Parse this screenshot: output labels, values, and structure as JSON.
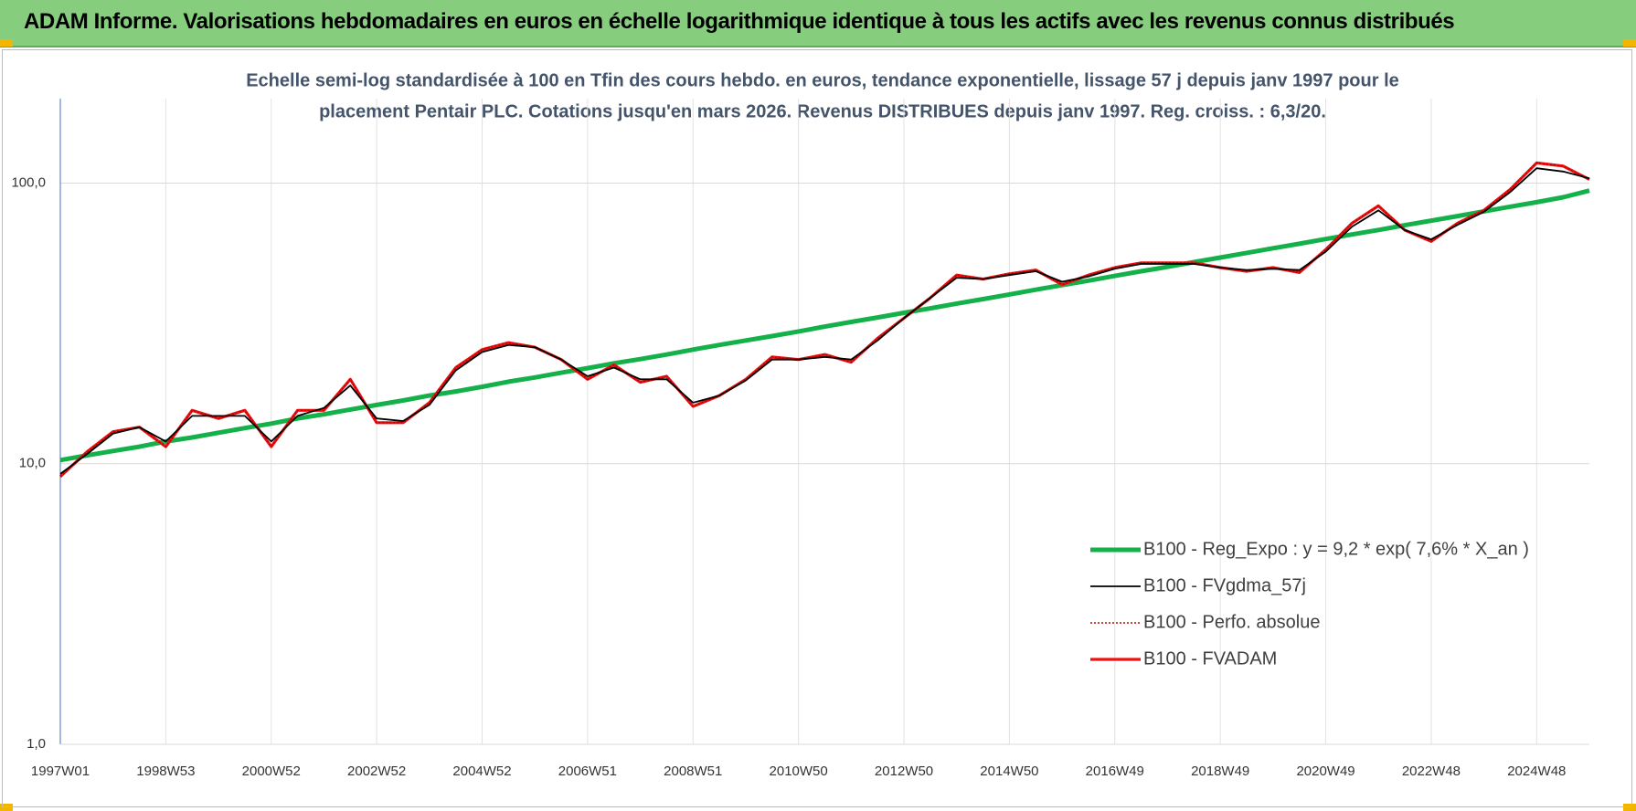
{
  "header": {
    "title": "ADAM Informe. Valorisations hebdomadaires en euros en échelle logarithmique identique à tous les actifs avec les revenus connus distribués"
  },
  "chart_data": {
    "type": "line",
    "subtitle_lines": [
      "Echelle semi-log standardisée à 100 en Tfin des cours hebdo. en euros, tendance exponentielle, lissage 57 j depuis janv 1997 pour le",
      "placement Pentair PLC. Cotations jusqu'en mars 2026. Revenus DISTRIBUES depuis janv 1997. Reg. croiss. : 6,3/20."
    ],
    "categories": [
      "1997W01",
      null,
      null,
      null,
      "1998W53",
      null,
      null,
      null,
      "2000W52",
      null,
      null,
      null,
      "2002W52",
      null,
      null,
      null,
      "2004W52",
      null,
      null,
      null,
      "2006W51",
      null,
      null,
      null,
      "2008W51",
      null,
      null,
      null,
      "2010W50",
      null,
      null,
      null,
      "2012W50",
      null,
      null,
      null,
      "2014W50",
      null,
      null,
      null,
      "2016W49",
      null,
      null,
      null,
      "2018W49",
      null,
      null,
      null,
      "2020W49",
      null,
      null,
      null,
      "2022W48",
      null,
      null,
      null,
      "2024W48",
      null,
      null
    ],
    "log_scale": true,
    "ylim": [
      1,
      200
    ],
    "yticks": [
      {
        "value": 1,
        "label": "1,0"
      },
      {
        "value": 10,
        "label": "10,0"
      },
      {
        "value": 100,
        "label": "100,0"
      }
    ],
    "grid": true,
    "legend_position": "right",
    "series": [
      {
        "name": "B100 - Reg_Expo : y = 9,2 * exp( 7,6% *  X_an )",
        "color": "#14b14b",
        "line_style": "solid",
        "values": [
          10.3,
          10.7,
          11.1,
          11.5,
          12.0,
          12.4,
          12.9,
          13.4,
          13.9,
          14.5,
          15.0,
          15.6,
          16.2,
          16.8,
          17.5,
          18.1,
          18.8,
          19.6,
          20.3,
          21.1,
          21.9,
          22.8,
          23.6,
          24.5,
          25.5,
          26.5,
          27.5,
          28.5,
          29.6,
          30.8,
          32.0,
          33.2,
          34.5,
          35.8,
          37.2,
          38.6,
          40.1,
          41.7,
          43.3,
          44.9,
          46.7,
          48.5,
          50.3,
          52.3,
          54.3,
          56.4,
          58.6,
          60.8,
          63.2,
          65.6,
          68.1,
          70.8,
          73.5,
          76.3,
          79.3,
          82.4,
          85.5,
          89.0,
          94.0
        ]
      },
      {
        "name": "B100 - FVgdma_57j",
        "color": "#000000",
        "line_style": "solid",
        "values": [
          9.2,
          10.8,
          12.8,
          13.5,
          12.0,
          14.8,
          14.8,
          14.8,
          12.0,
          14.8,
          15.8,
          19.0,
          14.5,
          14.2,
          16.2,
          21.5,
          25.0,
          26.5,
          26.0,
          23.5,
          20.5,
          22.0,
          20.0,
          20.0,
          16.5,
          17.5,
          19.8,
          23.5,
          23.5,
          24.0,
          23.5,
          27.5,
          33.0,
          39.0,
          46.0,
          45.5,
          47.0,
          48.5,
          44.5,
          46.5,
          49.5,
          51.5,
          51.5,
          51.5,
          50.0,
          49.0,
          49.5,
          49.0,
          57.0,
          70.0,
          80.0,
          68.0,
          63.0,
          71.0,
          79.0,
          93.0,
          113.0,
          110.0,
          104.0
        ]
      },
      {
        "name": "B100 - Perfo. absolue",
        "color": "#c00000",
        "line_style": "dotted",
        "values": [
          9.0,
          11.0,
          13.0,
          13.5,
          11.5,
          15.5,
          14.5,
          15.5,
          11.5,
          15.5,
          15.5,
          20.0,
          14.0,
          14.0,
          16.5,
          22.0,
          25.5,
          27.0,
          26.0,
          23.5,
          20.0,
          22.5,
          19.5,
          20.5,
          16.0,
          17.5,
          20.0,
          24.0,
          23.5,
          24.5,
          23.0,
          28.0,
          33.0,
          39.0,
          47.0,
          45.5,
          47.5,
          49.0,
          43.5,
          47.0,
          50.0,
          52.0,
          52.0,
          52.0,
          50.0,
          48.5,
          50.0,
          48.0,
          58.0,
          72.0,
          83.0,
          68.0,
          62.0,
          72.0,
          80.0,
          95.0,
          118.0,
          115.0,
          103.0
        ]
      },
      {
        "name": "B100 - FVADAM",
        "color": "#ee1111",
        "line_style": "solid",
        "values": [
          9.0,
          11.0,
          13.0,
          13.5,
          11.5,
          15.5,
          14.5,
          15.5,
          11.5,
          15.5,
          15.5,
          20.0,
          14.0,
          14.0,
          16.5,
          22.0,
          25.5,
          27.0,
          26.0,
          23.5,
          20.0,
          22.5,
          19.5,
          20.5,
          16.0,
          17.5,
          20.0,
          24.0,
          23.5,
          24.5,
          23.0,
          28.0,
          33.0,
          39.0,
          47.0,
          45.5,
          47.5,
          49.0,
          43.5,
          47.0,
          50.0,
          52.0,
          52.0,
          52.0,
          50.0,
          48.5,
          50.0,
          48.0,
          58.0,
          72.0,
          83.0,
          68.0,
          62.0,
          72.0,
          80.0,
          95.0,
          118.0,
          115.0,
          103.0
        ]
      }
    ]
  }
}
